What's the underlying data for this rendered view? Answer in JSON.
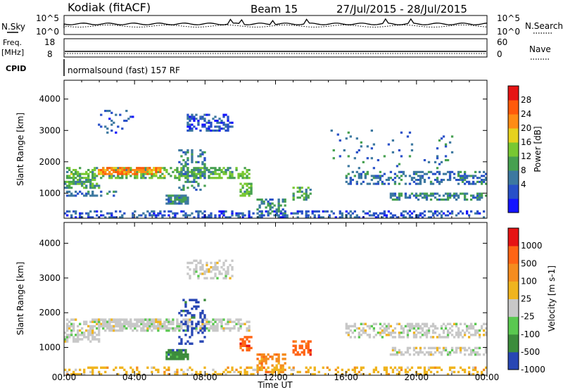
{
  "header": {
    "station": "Kodiak (fitACF)",
    "beam": "Beam 15",
    "date_range": "27/Jul/2015 - 28/Jul/2015"
  },
  "summary_panels": {
    "nsky_label": "N.Sky",
    "nsky_ticks": [
      "10^5",
      "10^0"
    ],
    "nsearch_label": "N.Search",
    "nsearch_ticks": [
      "10^5",
      "10^0"
    ],
    "freq_label": "Freq.",
    "freq_unit": "[MHz]",
    "freq_ticks": [
      "18",
      "8"
    ],
    "nave_label": "Nave",
    "nave_ticks": [
      "60",
      "0"
    ],
    "cpid_label": "CPID",
    "cpid_text": "normalsound (fast) 157 RF"
  },
  "chart_data": [
    {
      "type": "heatmap",
      "name_key": "power",
      "ylabel": "Slant Range [km]",
      "xlabel": "",
      "ylim": [
        200,
        4600
      ],
      "yticks": [
        "1000",
        "2000",
        "3000",
        "4000"
      ],
      "xticks": [
        "00:00",
        "04:00",
        "08:00",
        "12:00",
        "16:00",
        "20:00",
        "00:00"
      ],
      "colorbar_label": "Power [dB]",
      "colorbar_ticks": [
        "28",
        "24",
        "20",
        "16",
        "12",
        "8",
        "4"
      ],
      "colors": [
        "#1414ff",
        "#2850c8",
        "#3c78a0",
        "#46a050",
        "#78c832",
        "#e6d21e",
        "#ff8c14",
        "#ff5a0a",
        "#e61414"
      ],
      "clim": [
        0,
        32
      ],
      "blobs": [
        {
          "t": [
            0.2,
            10.5
          ],
          "r": [
            1500,
            1800
          ],
          "v": 14,
          "d": 0.55
        },
        {
          "t": [
            2.0,
            5.5
          ],
          "r": [
            1600,
            1800
          ],
          "v": 24,
          "d": 0.7
        },
        {
          "t": [
            0.0,
            2.0
          ],
          "r": [
            1200,
            1400
          ],
          "v": 12,
          "d": 0.6
        },
        {
          "t": [
            0.0,
            3.0
          ],
          "r": [
            900,
            1050
          ],
          "v": 8,
          "d": 0.4
        },
        {
          "t": [
            5.8,
            7.0
          ],
          "r": [
            700,
            900
          ],
          "v": 10,
          "d": 0.85
        },
        {
          "t": [
            7.0,
            9.5
          ],
          "r": [
            3000,
            3500
          ],
          "v": 6,
          "d": 0.45
        },
        {
          "t": [
            6.5,
            8.0
          ],
          "r": [
            1100,
            2400
          ],
          "v": 10,
          "d": 0.35
        },
        {
          "t": [
            10.0,
            10.6
          ],
          "r": [
            900,
            1300
          ],
          "v": 14,
          "d": 0.6
        },
        {
          "t": [
            11.0,
            12.5
          ],
          "r": [
            300,
            800
          ],
          "v": 10,
          "d": 0.5
        },
        {
          "t": [
            13.0,
            14.0
          ],
          "r": [
            800,
            1200
          ],
          "v": 12,
          "d": 0.45
        },
        {
          "t": [
            16.0,
            24.0
          ],
          "r": [
            1300,
            1700
          ],
          "v": 8,
          "d": 0.4
        },
        {
          "t": [
            18.5,
            24.0
          ],
          "r": [
            800,
            1000
          ],
          "v": 10,
          "d": 0.55
        },
        {
          "t": [
            0.0,
            24.0
          ],
          "r": [
            200,
            450
          ],
          "v": 6,
          "d": 0.35
        },
        {
          "t": [
            2.0,
            4.0
          ],
          "r": [
            2800,
            3600
          ],
          "v": 6,
          "d": 0.08
        },
        {
          "t": [
            15.0,
            22.0
          ],
          "r": [
            1800,
            3000
          ],
          "v": 8,
          "d": 0.04
        }
      ]
    },
    {
      "type": "heatmap",
      "name_key": "velocity",
      "ylabel": "Slant Range [km]",
      "xlabel": "Time UT",
      "ylim": [
        200,
        4600
      ],
      "yticks": [
        "1000",
        "2000",
        "3000",
        "4000"
      ],
      "xticks": [
        "00:00",
        "04:00",
        "08:00",
        "12:00",
        "16:00",
        "20:00",
        "00:00"
      ],
      "colorbar_label": "Velocity [m s-1]",
      "colorbar_ticks": [
        "1000",
        "500",
        "100",
        "25",
        "-25",
        "-100",
        "-500",
        "-1000"
      ],
      "colors": [
        "#2846b4",
        "#3c8c3c",
        "#5ac850",
        "#c8c8c8",
        "#f0b41e",
        "#f58c1e",
        "#ff6414",
        "#e61414"
      ],
      "blobs": [
        {
          "t": [
            0.2,
            10.5
          ],
          "r": [
            1500,
            1800
          ],
          "v": 3,
          "d": 0.55
        },
        {
          "t": [
            2.0,
            5.5
          ],
          "r": [
            1600,
            1800
          ],
          "v": 3,
          "d": 0.7
        },
        {
          "t": [
            0.0,
            2.0
          ],
          "r": [
            1200,
            1400
          ],
          "v": 3,
          "d": 0.6
        },
        {
          "t": [
            5.8,
            7.0
          ],
          "r": [
            700,
            900
          ],
          "v": 1,
          "d": 0.85
        },
        {
          "t": [
            7.0,
            9.5
          ],
          "r": [
            3000,
            3500
          ],
          "v": 3,
          "d": 0.45
        },
        {
          "t": [
            10.0,
            10.6
          ],
          "r": [
            900,
            1300
          ],
          "v": 6,
          "d": 0.7
        },
        {
          "t": [
            11.0,
            12.5
          ],
          "r": [
            300,
            800
          ],
          "v": 5,
          "d": 0.5
        },
        {
          "t": [
            13.0,
            14.0
          ],
          "r": [
            800,
            1200
          ],
          "v": 6,
          "d": 0.5
        },
        {
          "t": [
            16.0,
            24.0
          ],
          "r": [
            1300,
            1700
          ],
          "v": 3,
          "d": 0.45
        },
        {
          "t": [
            18.5,
            24.0
          ],
          "r": [
            800,
            1000
          ],
          "v": 3,
          "d": 0.55
        },
        {
          "t": [
            0.0,
            24.0
          ],
          "r": [
            200,
            450
          ],
          "v": 4,
          "d": 0.3
        },
        {
          "t": [
            6.5,
            8.0
          ],
          "r": [
            1100,
            2400
          ],
          "v": 0,
          "d": 0.3
        }
      ]
    }
  ]
}
